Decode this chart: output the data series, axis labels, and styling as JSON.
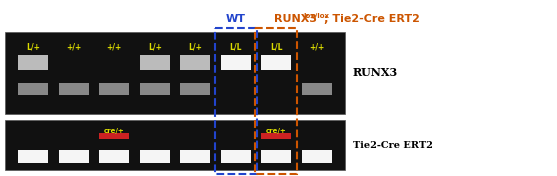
{
  "fig_width": 5.57,
  "fig_height": 1.76,
  "dpi": 100,
  "background": "#ffffff",
  "gel_bg": "#111111",
  "label_top": "RUNX3",
  "label_bot": "Tie2-Cre ERT2",
  "wt_label": "WT",
  "ko_label_main": "RUNX3",
  "ko_label_sup": "lox/lox",
  "ko_label_rest": "; Tie2-Cre ERT2",
  "wt_box_color": "#2244cc",
  "ko_box_color": "#cc5500",
  "lane_labels_top": [
    "L/+",
    "+/+",
    "+/+",
    "L/+",
    "L/+",
    "L/L",
    "L/L",
    "+/+"
  ],
  "lane_labels_bot": [
    "",
    "",
    "cre/+",
    "",
    "",
    "",
    "cre/+",
    ""
  ],
  "lane_label_color": "#dddd00",
  "cre_label_color": "#dddd00",
  "band_white": "#f5f5f5",
  "band_dim": "#bbbbbb",
  "band_red": "#cc2222",
  "band_lower_faint": "#888888"
}
